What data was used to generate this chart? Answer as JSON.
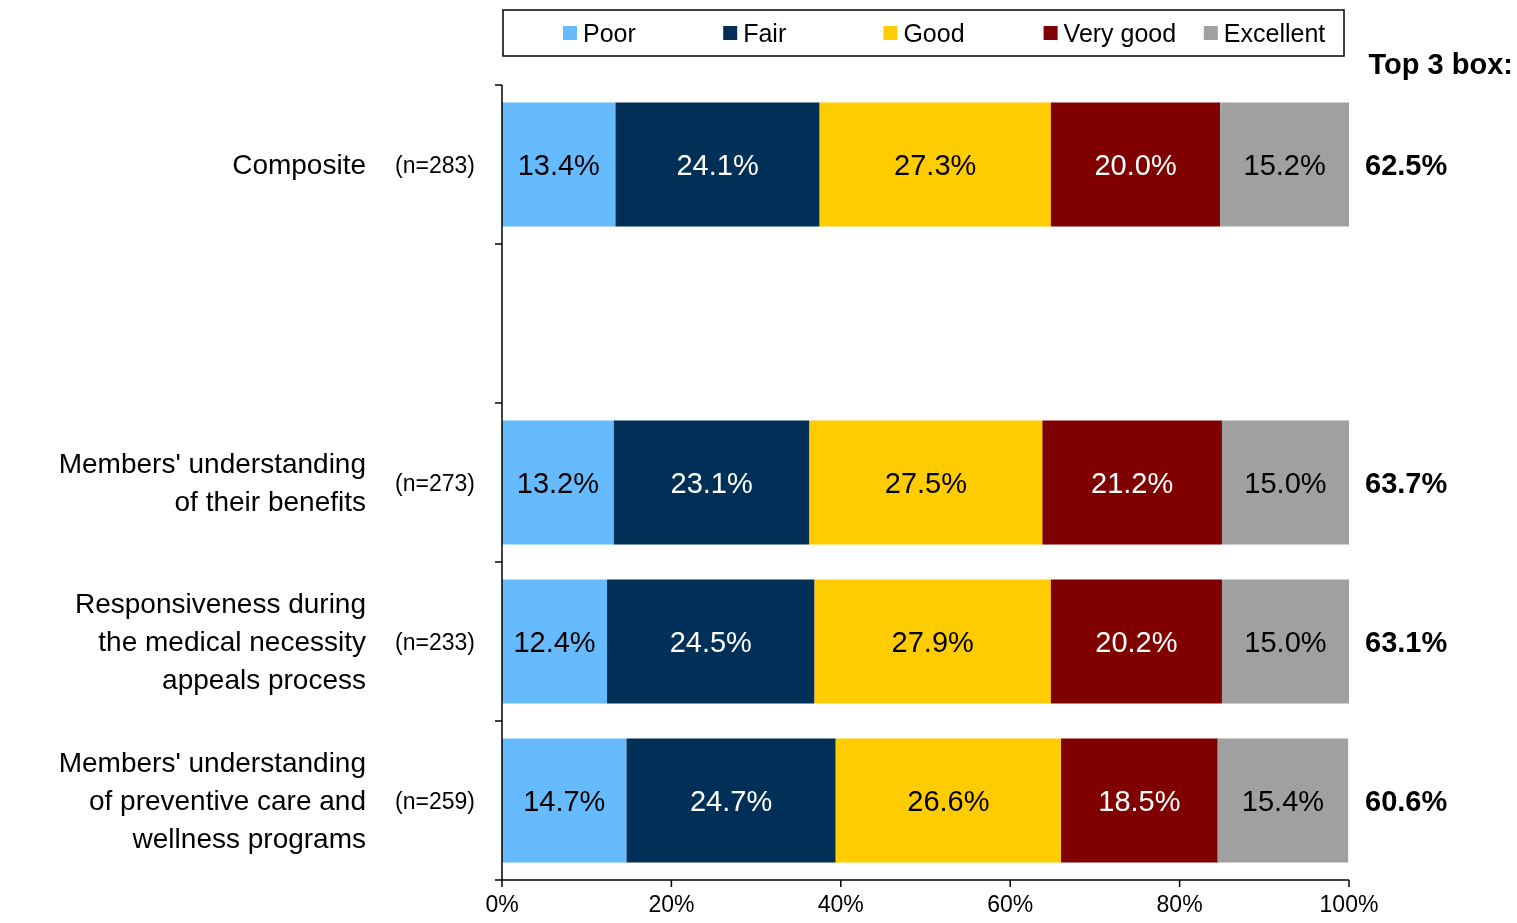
{
  "chart_data": {
    "type": "bar",
    "orientation": "horizontal",
    "stacked": true,
    "categories": [
      "Composite",
      null,
      "Members' understanding of their benefits",
      "Responsiveness during the medical necessity appeals process",
      "Members' understanding of preventive care and wellness programs"
    ],
    "series": [
      {
        "name": "Poor",
        "color": "#66bbff",
        "values": [
          13.4,
          null,
          13.2,
          12.4,
          14.7
        ],
        "value_labels": [
          "13.4%",
          null,
          "13.2%",
          "12.4%",
          "14.7%"
        ]
      },
      {
        "name": "Fair",
        "color": "#003057",
        "values": [
          24.1,
          null,
          23.1,
          24.5,
          24.7
        ],
        "value_labels": [
          "24.1%",
          null,
          "23.1%",
          "24.5%",
          "24.7%"
        ]
      },
      {
        "name": "Good",
        "color": "#ffcc00",
        "values": [
          27.3,
          null,
          27.5,
          27.9,
          26.6
        ],
        "value_labels": [
          "27.3%",
          null,
          "27.5%",
          "27.9%",
          "26.6%"
        ]
      },
      {
        "name": "Very good",
        "color": "#800000",
        "values": [
          20.0,
          null,
          21.2,
          20.2,
          18.5
        ],
        "value_labels": [
          "20.0%",
          null,
          "21.2%",
          "20.2%",
          "18.5%"
        ]
      },
      {
        "name": "Excellent",
        "color": "#a0a0a0",
        "values": [
          15.2,
          null,
          15.0,
          15.0,
          15.4
        ],
        "value_labels": [
          "15.2%",
          null,
          "15.0%",
          "15.0%",
          "15.4%"
        ]
      }
    ],
    "xlim": [
      0,
      100
    ],
    "xticks": [
      {
        "value": 0,
        "label": "0%"
      },
      {
        "value": 20,
        "label": "20%"
      },
      {
        "value": 40,
        "label": "40%"
      },
      {
        "value": 60,
        "label": "60%"
      },
      {
        "value": 80,
        "label": "80%"
      },
      {
        "value": 100,
        "label": "100%"
      }
    ],
    "annotations": [
      "Top 3 box:",
      "(n=283)",
      "(n=273)",
      "(n=233)",
      "(n=259)",
      "62.5%",
      "63.7%",
      "63.1%",
      "60.6%"
    ],
    "legend": "top",
    "grid": false
  }
}
